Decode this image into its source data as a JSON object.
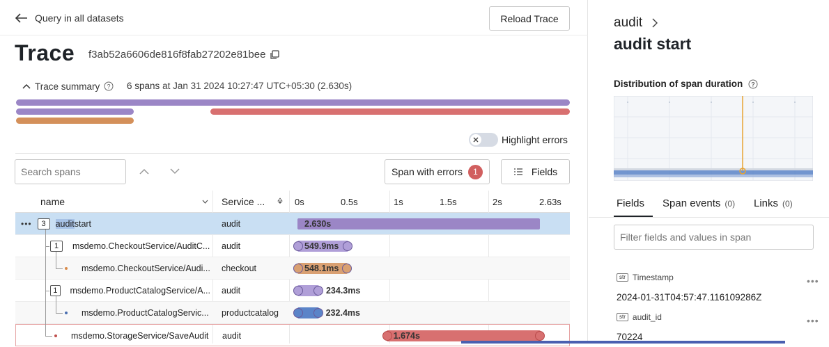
{
  "nav": {
    "back_label": "Query in all datasets",
    "reload_label": "Reload Trace"
  },
  "trace": {
    "title": "Trace",
    "id": "f3ab52a6606de816f8fab27202e81bee"
  },
  "summary": {
    "toggle_label": "Trace summary",
    "spans": "6 spans",
    "at_text": "at Jan 31 2024 10:27:47 UTC+05:30 (2.630s)"
  },
  "highlight_errors_label": "Highlight errors",
  "search": {
    "placeholder": "Search spans"
  },
  "span_errors": {
    "label": "Span with errors",
    "count": "1"
  },
  "fields_button": "Fields",
  "table": {
    "col_name": "name",
    "col_service": "Service ...",
    "ticks": [
      "0s",
      "0.5s",
      "1s",
      "1.5s",
      "2s",
      "2.63s"
    ],
    "rows": [
      {
        "badge": "3",
        "name_highlight": "audit",
        "name_rest": " start",
        "service": "audit",
        "duration": "2.630s",
        "start_frac": 0,
        "dur_frac": 1.0,
        "color": "#9b86c6"
      },
      {
        "badge": "1",
        "name": "msdemo.CheckoutService/AuditC...",
        "service": "audit",
        "duration": "549.9ms",
        "start_frac": 0,
        "dur_frac": 0.209,
        "color": "#b09fd8"
      },
      {
        "name": "msdemo.CheckoutService/Audi...",
        "service": "checkout",
        "duration": "548.1ms",
        "start_frac": 0,
        "dur_frac": 0.208,
        "color": "#d9a072",
        "dot_color": "#d98b4a"
      },
      {
        "badge": "1",
        "name": "msdemo.ProductCatalogService/A...",
        "service": "audit",
        "duration": "234.3ms",
        "start_frac": 0,
        "dur_frac": 0.089,
        "color": "#b09fd8"
      },
      {
        "name": "msdemo.ProductCatalogServic...",
        "service": "productcatalog",
        "duration": "232.4ms",
        "start_frac": 0,
        "dur_frac": 0.088,
        "color": "#5b84c8",
        "dot_color": "#4a6fb0"
      },
      {
        "name": "msdemo.StorageService/SaveAudit",
        "service": "audit",
        "duration": "1.674s",
        "start_frac": 0.364,
        "dur_frac": 0.636,
        "color": "#d87070",
        "dot_color": "#c0504d"
      }
    ]
  },
  "detail": {
    "breadcrumb": "audit",
    "title": "audit start",
    "dist_label": "Distribution of span duration",
    "tabs": [
      {
        "label": "Fields",
        "count": ""
      },
      {
        "label": "Span events",
        "count": "(0)"
      },
      {
        "label": "Links",
        "count": "(0)"
      }
    ],
    "filter_placeholder": "Filter fields and values in span",
    "fields": [
      {
        "type": "str",
        "key": "Timestamp",
        "value": "2024-01-31T04:57:47.116109286Z"
      },
      {
        "type": "str",
        "key": "audit_id",
        "value": "70224"
      }
    ]
  }
}
